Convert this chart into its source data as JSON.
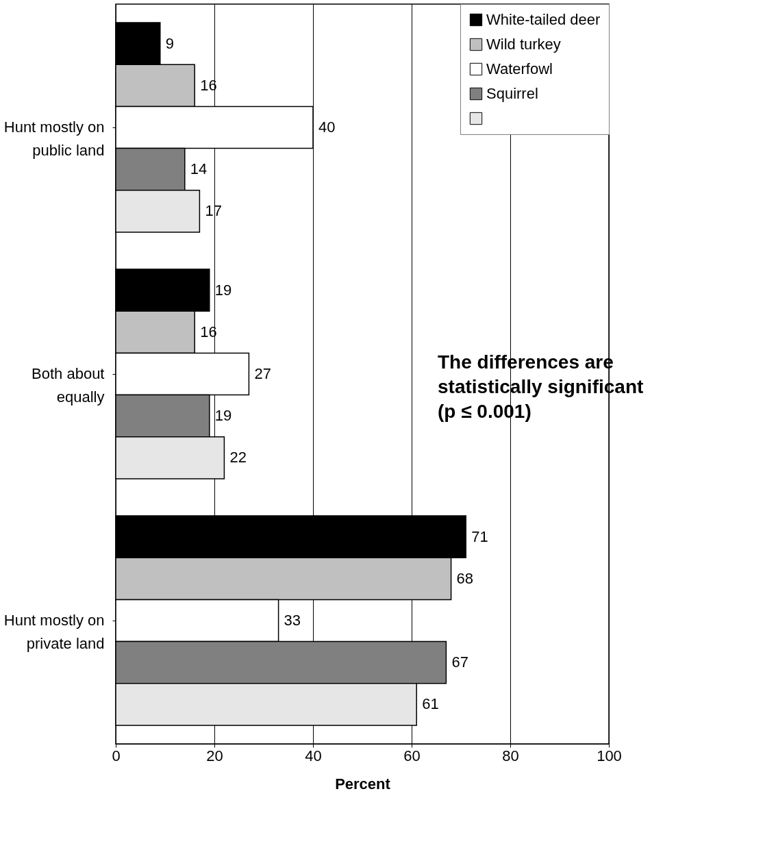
{
  "chart_data": {
    "type": "bar",
    "orientation": "horizontal",
    "xlabel": "Percent",
    "categories": [
      "Hunt mostly on public land",
      "Both about equally",
      "Hunt mostly on private land"
    ],
    "series": [
      {
        "name": "White-tailed deer",
        "color": "#000000",
        "values": [
          9,
          19,
          71
        ]
      },
      {
        "name": "Wild turkey",
        "color": "#c0c0c0",
        "values": [
          16,
          16,
          68
        ]
      },
      {
        "name": "Waterfowl",
        "color": "#ffffff",
        "values": [
          40,
          27,
          33
        ]
      },
      {
        "name": "Squirrel",
        "color": "#808080",
        "values": [
          14,
          19,
          67
        ]
      },
      {
        "color": "#e6e6e6",
        "values": [
          17,
          22,
          61
        ]
      }
    ],
    "xlim": [
      0,
      100
    ],
    "xticks": [
      0,
      20,
      40,
      60,
      80,
      100
    ],
    "grid": "x",
    "data_labels": true,
    "legend": "top right",
    "annotations": [
      "The differences are\nstatistically significant\n(p ≤ 0.001)"
    ]
  }
}
